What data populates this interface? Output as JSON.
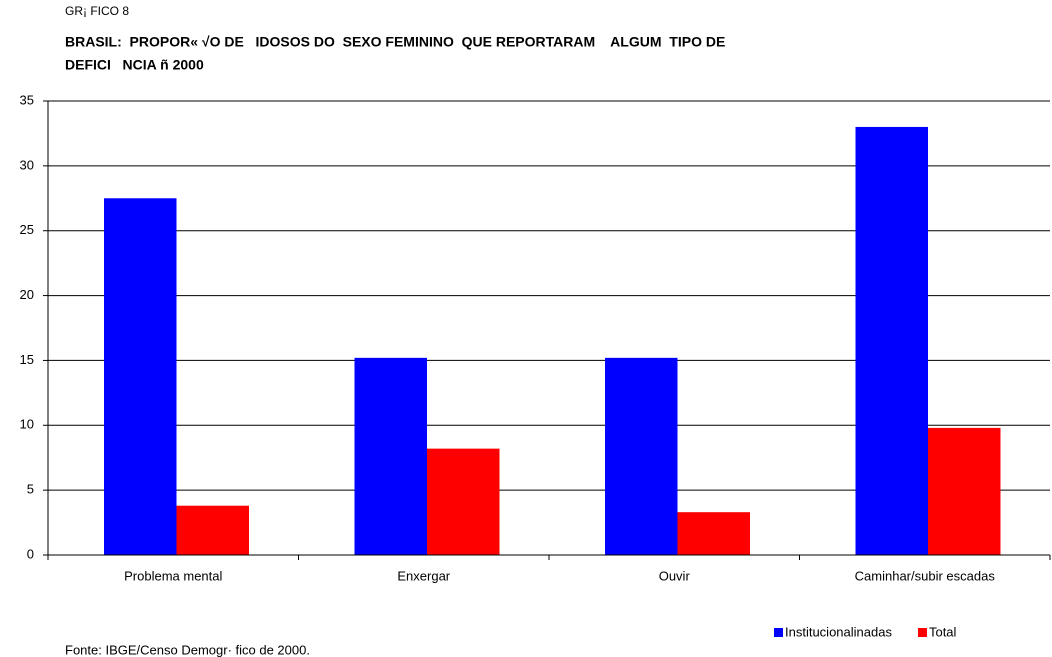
{
  "chart_data": {
    "type": "bar",
    "label": "GR¡ FICO 8",
    "title": [
      "BRASIL:  PROPOR« √O DE   IDOSOS DO  SEXO FEMININO  QUE REPORTARAM    ALGUM  TIPO DE",
      "DEFICI   NCIA ñ 2000"
    ],
    "source": "Fonte: IBGE/Censo Demogr· fico de 2000.",
    "categories": [
      "Problema mental",
      "Enxergar",
      "Ouvir",
      "Caminhar/subir escadas"
    ],
    "series": [
      {
        "name": "Institucionalinadas",
        "color": "#0000ff",
        "values": [
          27.5,
          15.2,
          15.2,
          33.0
        ]
      },
      {
        "name": "Total",
        "color": "#ff0000",
        "values": [
          3.8,
          8.2,
          3.3,
          9.8
        ]
      }
    ],
    "ylim": [
      0,
      35
    ],
    "yticks": [
      0,
      5,
      10,
      15,
      20,
      25,
      30,
      35
    ],
    "grid": true,
    "legend": "bottom-right"
  }
}
